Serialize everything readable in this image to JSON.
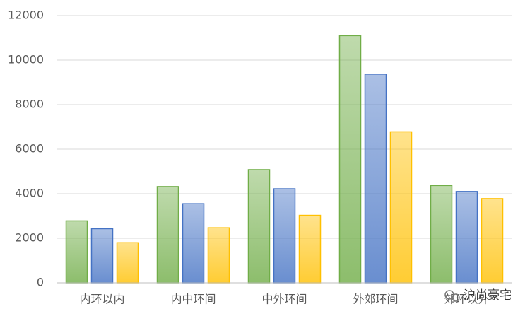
{
  "chart_data": {
    "type": "bar",
    "categories": [
      "内环以内",
      "内中环间",
      "中外环间",
      "外郊环间",
      "郊环以外"
    ],
    "series": [
      {
        "color": "#70ad47",
        "values": [
          2780,
          4320,
          5080,
          11100,
          4370
        ]
      },
      {
        "color": "#4472c4",
        "values": [
          2430,
          3550,
          4220,
          9370,
          4100
        ]
      },
      {
        "color": "#ffc000",
        "values": [
          1800,
          2470,
          3030,
          6780,
          3780
        ]
      }
    ],
    "ylim": [
      0,
      12000
    ],
    "yticks": [
      0,
      2000,
      4000,
      6000,
      8000,
      10000,
      12000
    ],
    "grid": true,
    "watermark": "沪尚豪宅"
  }
}
